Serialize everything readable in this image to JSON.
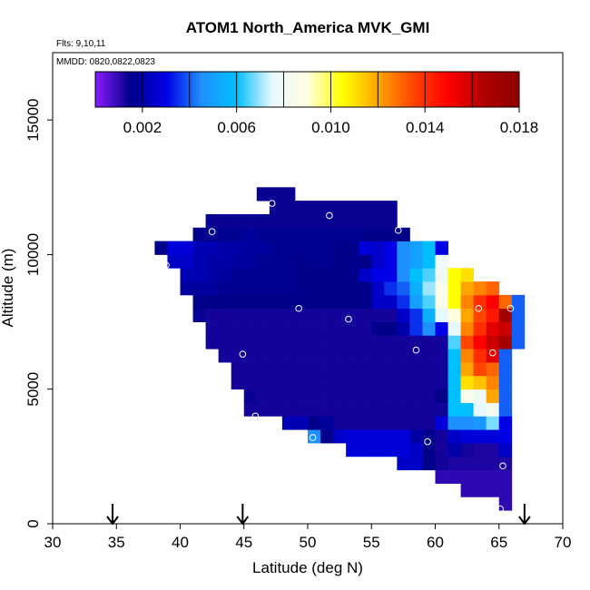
{
  "chart_data": {
    "type": "heatmap",
    "title": "ATOM1 North_America MVK_GMI",
    "subtitle_flights": "Flts: 9,10,11",
    "subtitle_dates": "MMDD: 0820,0822,0823",
    "xlabel": "Latitude (deg N)",
    "ylabel": "Altitude (m)",
    "xlim": [
      30,
      70
    ],
    "ylim": [
      0,
      17500
    ],
    "x_ticks": [
      "30",
      "35",
      "40",
      "45",
      "50",
      "55",
      "60",
      "65",
      "70"
    ],
    "x_tick_values": [
      30,
      35,
      40,
      45,
      50,
      55,
      60,
      65,
      70
    ],
    "y_ticks": [
      "0",
      "5000",
      "10000",
      "15000"
    ],
    "y_tick_values": [
      0,
      5000,
      10000,
      15000
    ],
    "colorbar": {
      "range": [
        0,
        0.018
      ],
      "tick_labels": [
        "0.002",
        "0.006",
        "0.010",
        "0.014",
        "0.018"
      ],
      "tick_values": [
        0.002,
        0.006,
        0.01,
        0.014,
        0.018
      ],
      "stop_colors": [
        "#8b1aff",
        "#00008b",
        "#0000e6",
        "#1e90ff",
        "#00bfff",
        "#e8f8ff",
        "#ffffe0",
        "#ffff00",
        "#ffa500",
        "#ff4500",
        "#ff0000",
        "#b00000",
        "#8b0000"
      ]
    },
    "arrows_latitude": [
      34.7,
      44.9,
      67.0
    ],
    "cell_size": {
      "lat": 1.0,
      "alt": 500
    },
    "rows_note": "each row: alt = bottom of 500 m band, start = southern edge of first 1-deg cell, values = MVK mixing ratio per cell",
    "rows": [
      {
        "alt": 500,
        "start": 65,
        "values": [
          0.001
        ]
      },
      {
        "alt": 1000,
        "start": 62,
        "values": [
          0.001,
          0.001,
          0.001,
          0.001
        ]
      },
      {
        "alt": 1500,
        "start": 60,
        "values": [
          0.001,
          0.001,
          0.001,
          0.001,
          0.001,
          0.001
        ]
      },
      {
        "alt": 2000,
        "start": 57,
        "values": [
          0.0025,
          0.0025,
          0.0015,
          0.0013,
          0.0012,
          0.0012,
          0.0012,
          0.0012,
          0.0012
        ]
      },
      {
        "alt": 2500,
        "start": 53,
        "values": [
          0.0028,
          0.0028,
          0.0028,
          0.0028,
          0.0028,
          0.0025,
          0.0015,
          0.0013,
          0.002,
          0.0013,
          0.0012,
          0.0012,
          0.0025
        ]
      },
      {
        "alt": 3000,
        "start": 50,
        "values": [
          0.0045,
          0.0015,
          0.0025,
          0.0028,
          0.0028,
          0.0028,
          0.0028,
          0.0028,
          0.002,
          0.0015,
          0.0013,
          0.0025,
          0.0028,
          0.0028,
          0.0028,
          0.003
        ]
      },
      {
        "alt": 3500,
        "start": 48,
        "values": [
          0.0022,
          0.0022,
          0.0015,
          0.0018,
          0.0013,
          0.0013,
          0.0013,
          0.0013,
          0.0013,
          0.0013,
          0.0013,
          0.0013,
          0.0028,
          0.0045,
          0.0045,
          0.0048,
          0.0068,
          0.003
        ]
      },
      {
        "alt": 4000,
        "start": 45,
        "values": [
          0.0013,
          0.0013,
          0.0013,
          0.0013,
          0.0013,
          0.0013,
          0.0013,
          0.0013,
          0.0013,
          0.0013,
          0.0013,
          0.0013,
          0.0013,
          0.0013,
          0.0013,
          0.0013,
          0.006,
          0.006,
          0.0075,
          0.0082,
          0.004
        ]
      },
      {
        "alt": 4500,
        "start": 45,
        "values": [
          0.0014,
          0.0013,
          0.0013,
          0.0013,
          0.0013,
          0.0013,
          0.0013,
          0.0013,
          0.0013,
          0.0013,
          0.0013,
          0.0013,
          0.0013,
          0.0013,
          0.0013,
          0.0015,
          0.006,
          0.0085,
          0.008,
          0.012,
          0.004
        ]
      },
      {
        "alt": 5000,
        "start": 44,
        "values": [
          0.0013,
          0.0013,
          0.0013,
          0.0013,
          0.0013,
          0.0013,
          0.0013,
          0.0013,
          0.0013,
          0.0013,
          0.0013,
          0.0013,
          0.0013,
          0.0013,
          0.0013,
          0.0013,
          0.0013,
          0.006,
          0.011,
          0.0115,
          0.0125,
          0.004
        ]
      },
      {
        "alt": 5500,
        "start": 44,
        "values": [
          0.0013,
          0.0013,
          0.0013,
          0.0013,
          0.0013,
          0.0013,
          0.0013,
          0.0013,
          0.0013,
          0.0013,
          0.0013,
          0.0013,
          0.0013,
          0.0013,
          0.0013,
          0.0013,
          0.0013,
          0.006,
          0.012,
          0.0135,
          0.013,
          0.004
        ]
      },
      {
        "alt": 6000,
        "start": 43,
        "values": [
          0.0013,
          0.0013,
          0.0013,
          0.0013,
          0.0013,
          0.0013,
          0.0013,
          0.0013,
          0.0013,
          0.0013,
          0.0013,
          0.0013,
          0.0013,
          0.0013,
          0.0013,
          0.0013,
          0.0013,
          0.0013,
          0.006,
          0.0125,
          0.014,
          0.0155,
          0.004
        ]
      },
      {
        "alt": 6500,
        "start": 42,
        "values": [
          0.0013,
          0.0013,
          0.0013,
          0.0013,
          0.0013,
          0.0013,
          0.0013,
          0.0013,
          0.0013,
          0.0013,
          0.0013,
          0.0013,
          0.0013,
          0.0013,
          0.0013,
          0.0013,
          0.0013,
          0.0013,
          0.0013,
          0.0065,
          0.0135,
          0.015,
          0.016,
          0.017,
          0.004
        ]
      },
      {
        "alt": 7000,
        "start": 42,
        "values": [
          0.0013,
          0.0013,
          0.0013,
          0.0013,
          0.0013,
          0.0013,
          0.0013,
          0.0013,
          0.0013,
          0.0013,
          0.0013,
          0.0013,
          0.0013,
          0.0015,
          0.0015,
          0.002,
          0.0035,
          0.0045,
          0.003,
          0.0075,
          0.0125,
          0.014,
          0.0155,
          0.016,
          0.004
        ]
      },
      {
        "alt": 7500,
        "start": 41,
        "values": [
          0.0014,
          0.0013,
          0.0013,
          0.0013,
          0.0013,
          0.0013,
          0.0013,
          0.0013,
          0.0013,
          0.0013,
          0.0013,
          0.0013,
          0.0013,
          0.0013,
          0.0013,
          0.0013,
          0.0025,
          0.0035,
          0.0055,
          0.0075,
          0.009,
          0.012,
          0.0135,
          0.0145,
          0.017,
          0.004
        ]
      },
      {
        "alt": 8000,
        "start": 41,
        "values": [
          0.0015,
          0.0015,
          0.0015,
          0.0015,
          0.0015,
          0.0015,
          0.0015,
          0.0015,
          0.0015,
          0.0015,
          0.0015,
          0.0015,
          0.0015,
          0.0015,
          0.0025,
          0.0025,
          0.0035,
          0.005,
          0.0065,
          0.0085,
          0.0105,
          0.0125,
          0.014,
          0.015,
          0.013,
          0.004
        ]
      },
      {
        "alt": 8500,
        "start": 40,
        "values": [
          0.0018,
          0.0018,
          0.0018,
          0.0016,
          0.0016,
          0.0016,
          0.0016,
          0.0016,
          0.0016,
          0.0015,
          0.0015,
          0.0015,
          0.0015,
          0.0015,
          0.0015,
          0.0025,
          0.0035,
          0.004,
          0.0055,
          0.007,
          0.0085,
          0.0105,
          0.012,
          0.0125,
          0.013
        ]
      },
      {
        "alt": 9000,
        "start": 40,
        "values": [
          0.0022,
          0.0022,
          0.002,
          0.0018,
          0.0016,
          0.0016,
          0.0016,
          0.0016,
          0.0016,
          0.0015,
          0.0015,
          0.0015,
          0.0015,
          0.0015,
          0.0025,
          0.003,
          0.003,
          0.0045,
          0.006,
          0.0065,
          0.008,
          0.0105,
          0.011
        ]
      },
      {
        "alt": 9500,
        "start": 39,
        "values": [
          0.0025,
          0.0025,
          0.0022,
          0.002,
          0.002,
          0.0018,
          0.0018,
          0.0016,
          0.0016,
          0.0016,
          0.0015,
          0.0016,
          0.0016,
          0.0015,
          0.0015,
          0.0015,
          0.0025,
          0.003,
          0.0045,
          0.005,
          0.006,
          0.008
        ]
      },
      {
        "alt": 10000,
        "start": 38,
        "values": [
          0.0015,
          0.0028,
          0.0028,
          0.0022,
          0.0022,
          0.002,
          0.002,
          0.0018,
          0.0018,
          0.0016,
          0.0016,
          0.0016,
          0.0016,
          0.0016,
          0.0015,
          0.0015,
          0.0028,
          0.0025,
          0.003,
          0.0045,
          0.005,
          0.006,
          0.003
        ]
      },
      {
        "alt": 10500,
        "start": 41,
        "values": [
          0.0015,
          0.0016,
          0.0016,
          0.0016,
          0.0018,
          0.0016,
          0.0016,
          0.0016,
          0.0016,
          0.0016,
          0.0016,
          0.0016,
          0.0016,
          0.0015,
          0.0015,
          0.0015,
          0.0015
        ]
      },
      {
        "alt": 11000,
        "start": 42,
        "values": [
          0.0014,
          0.0014,
          0.0014,
          0.0014,
          0.0014,
          0.0014,
          0.0014,
          0.0014,
          0.0014,
          0.0014,
          0.0014,
          0.0014,
          0.0014,
          0.0014,
          0.0014
        ]
      },
      {
        "alt": 11500,
        "start": 47,
        "values": [
          0.0014,
          0.0014,
          0.0014,
          0.0014,
          0.0014,
          0.0014,
          0.0014,
          0.0014,
          0.0014,
          0.0014
        ]
      },
      {
        "alt": 12000,
        "start": 46,
        "values": [
          0.0014,
          0.0014,
          0.0014
        ]
      }
    ],
    "flight_points": [
      {
        "lat": 45.9,
        "alt": 4000
      },
      {
        "lat": 44.9,
        "alt": 6300
      },
      {
        "lat": 49.3,
        "alt": 8000
      },
      {
        "lat": 53.2,
        "alt": 7600
      },
      {
        "lat": 50.4,
        "alt": 3200
      },
      {
        "lat": 38.9,
        "alt": 9600
      },
      {
        "lat": 42.5,
        "alt": 10850
      },
      {
        "lat": 47.2,
        "alt": 11900
      },
      {
        "lat": 51.7,
        "alt": 11450
      },
      {
        "lat": 57.1,
        "alt": 10900
      },
      {
        "lat": 58.5,
        "alt": 6450
      },
      {
        "lat": 59.4,
        "alt": 3050
      },
      {
        "lat": 59.2,
        "alt": 1750
      },
      {
        "lat": 63.4,
        "alt": 8000
      },
      {
        "lat": 64.5,
        "alt": 6350
      },
      {
        "lat": 65.9,
        "alt": 8000
      },
      {
        "lat": 65.3,
        "alt": 2150
      },
      {
        "lat": 65.1,
        "alt": 550
      }
    ]
  }
}
